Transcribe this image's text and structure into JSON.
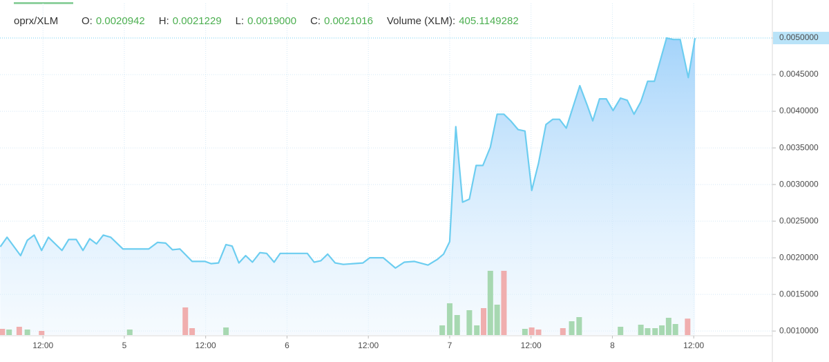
{
  "chart_data": {
    "type": "area",
    "symbol": "oprx/XLM",
    "ohlc": [
      {
        "label": "O:",
        "value": "0.0020942"
      },
      {
        "label": "H:",
        "value": "0.0021229"
      },
      {
        "label": "L:",
        "value": "0.0019000"
      },
      {
        "label": "C:",
        "value": "0.0021016"
      },
      {
        "label": "Volume (XLM):",
        "value": "405.1149282"
      }
    ],
    "xlim": [
      -18.34,
      95.6
    ],
    "xticks": [
      {
        "value": -12,
        "label": "12:00"
      },
      {
        "value": 0,
        "label": "5"
      },
      {
        "value": 12,
        "label": "12:00"
      },
      {
        "value": 24,
        "label": "6"
      },
      {
        "value": 36,
        "label": "12:00"
      },
      {
        "value": 48,
        "label": "7"
      },
      {
        "value": 60,
        "label": "12:00"
      },
      {
        "value": 72,
        "label": "8"
      },
      {
        "value": 84,
        "label": "12:00"
      }
    ],
    "ylim": [
      0.000945,
      0.005472
    ],
    "yticks": [
      {
        "value": 0.001,
        "label": "0.0010000"
      },
      {
        "value": 0.0015,
        "label": "0.0015000"
      },
      {
        "value": 0.002,
        "label": "0.0020000"
      },
      {
        "value": 0.0025,
        "label": "0.0025000"
      },
      {
        "value": 0.003,
        "label": "0.0030000"
      },
      {
        "value": 0.0035,
        "label": "0.0035000"
      },
      {
        "value": 0.004,
        "label": "0.0040000"
      },
      {
        "value": 0.0045,
        "label": "0.0045000"
      },
      {
        "value": 0.005,
        "label": "0.0050000"
      }
    ],
    "y2lim": [
      0,
      8160
    ],
    "grid": true,
    "series": [
      {
        "name": "price",
        "color": "#6ccdf0",
        "x": [
          -18.3,
          -17.3,
          -15.3,
          -14.3,
          -13.3,
          -12.2,
          -11.2,
          -9.2,
          -8.2,
          -7.1,
          -6.1,
          -5.1,
          -4.1,
          -3.1,
          -2.0,
          -0.2,
          3.6,
          4.9,
          6.1,
          7.1,
          8.2,
          10.0,
          11.9,
          12.8,
          13.9,
          15.0,
          15.9,
          16.9,
          17.9,
          18.9,
          20.0,
          21.0,
          22.1,
          23.0,
          27.0,
          28.0,
          29.0,
          30.0,
          31.1,
          32.3,
          35.2,
          36.2,
          38.2,
          40.0,
          41.3,
          42.8,
          44.8,
          46.2,
          47.1,
          48.0,
          48.9,
          49.9,
          50.9,
          51.9,
          52.9,
          54.0,
          55.0,
          56.0,
          57.0,
          58.1,
          59.1,
          60.1,
          61.1,
          62.2,
          63.2,
          64.2,
          65.2,
          66.2,
          67.2,
          68.3,
          69.1,
          70.1,
          71.1,
          72.1,
          73.2,
          74.2,
          75.2,
          76.2,
          77.2,
          78.2,
          80.0,
          81.0,
          82.0,
          83.2,
          84.2
        ],
        "values": [
          0.00215,
          0.00228,
          0.00203,
          0.00224,
          0.00231,
          0.0021,
          0.00228,
          0.0021,
          0.00225,
          0.00225,
          0.0021,
          0.00226,
          0.00219,
          0.00231,
          0.00228,
          0.00212,
          0.00212,
          0.00221,
          0.0022,
          0.00211,
          0.00212,
          0.00195,
          0.00195,
          0.00192,
          0.00193,
          0.00218,
          0.00216,
          0.00193,
          0.00203,
          0.00194,
          0.00207,
          0.00206,
          0.00194,
          0.00206,
          0.00206,
          0.00194,
          0.00196,
          0.00205,
          0.00193,
          0.00191,
          0.00193,
          0.002,
          0.002,
          0.00186,
          0.00194,
          0.00195,
          0.0019,
          0.00198,
          0.00205,
          0.00222,
          0.00379,
          0.00276,
          0.0028,
          0.00326,
          0.00326,
          0.00351,
          0.00396,
          0.00396,
          0.00387,
          0.00375,
          0.00373,
          0.00292,
          0.00329,
          0.00382,
          0.00389,
          0.00389,
          0.00377,
          0.00406,
          0.00435,
          0.00408,
          0.00387,
          0.00417,
          0.00417,
          0.00401,
          0.00418,
          0.00415,
          0.00396,
          0.00413,
          0.00441,
          0.00441,
          0.005,
          0.00498,
          0.00498,
          0.00446,
          0.005
        ]
      },
      {
        "name": "volume up",
        "color": "#9fd4a8",
        "axis": "y2",
        "x": [
          -17.0,
          -14.3,
          0.8,
          15.0,
          46.9,
          48.0,
          49.1,
          50.9,
          52.0,
          54.0,
          55.0,
          59.1,
          66.0,
          67.1,
          73.2,
          76.2,
          77.2,
          78.3,
          79.3,
          80.3,
          81.3
        ],
        "values": [
          136,
          136,
          136,
          187,
          238,
          782,
          493,
          612,
          238,
          1581,
          748,
          153,
          340,
          442,
          204,
          255,
          170,
          170,
          238,
          425,
          272
        ]
      },
      {
        "name": "volume down",
        "color": "#f0a5a5",
        "axis": "y2",
        "x": [
          -18.0,
          -15.5,
          -12.2,
          9.0,
          10.0,
          53.0,
          56.0,
          60.1,
          61.1,
          64.7,
          83.1
        ],
        "values": [
          153,
          204,
          102,
          680,
          170,
          663,
          1581,
          187,
          136,
          170,
          405
        ]
      }
    ]
  }
}
